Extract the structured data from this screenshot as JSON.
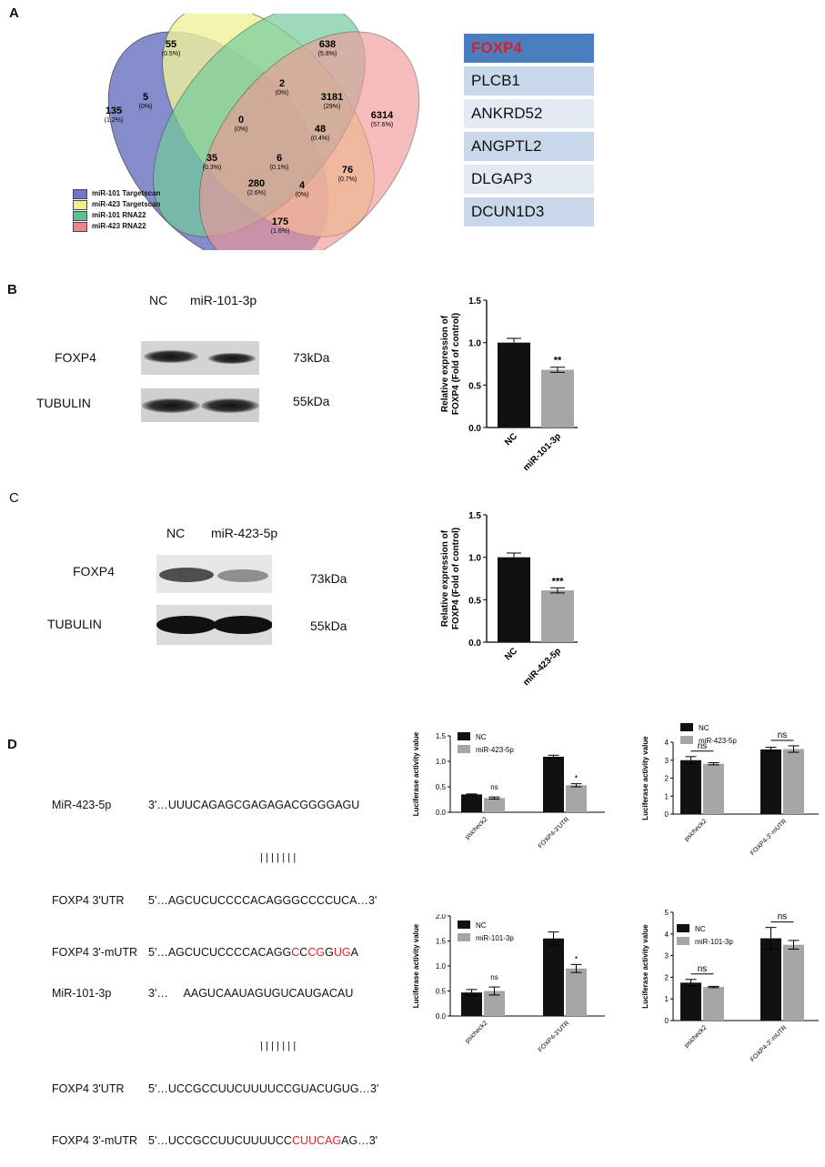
{
  "panels": {
    "A": "A",
    "B": "B",
    "C": "C",
    "D": "D"
  },
  "venn": {
    "regions": [
      {
        "count": "55",
        "pct": "(0.5%)"
      },
      {
        "count": "638",
        "pct": "(5.8%)"
      },
      {
        "count": "5",
        "pct": "(0%)"
      },
      {
        "count": "2",
        "pct": "(0%)"
      },
      {
        "count": "3181",
        "pct": "(29%)"
      },
      {
        "count": "135",
        "pct": "(1.2%)"
      },
      {
        "count": "0",
        "pct": "(0%)"
      },
      {
        "count": "48",
        "pct": "(0.4%)"
      },
      {
        "count": "6314",
        "pct": "(57.6%)"
      },
      {
        "count": "6",
        "pct": "(0.1%)"
      },
      {
        "count": "35",
        "pct": "(0.3%)"
      },
      {
        "count": "76",
        "pct": "(0.7%)"
      },
      {
        "count": "280",
        "pct": "(2.6%)"
      },
      {
        "count": "4",
        "pct": "(0%)"
      },
      {
        "count": "175",
        "pct": "(1.6%)"
      }
    ],
    "legend": [
      {
        "label": "miR-101 Targetscan",
        "color": "#6f78c4"
      },
      {
        "label": "miR-423 Targetscan",
        "color": "#eef08a"
      },
      {
        "label": "miR-101 RNA22",
        "color": "#5cc28a"
      },
      {
        "label": "miR-423 RNA22",
        "color": "#ee8585"
      }
    ]
  },
  "genes": [
    "FOXP4",
    "PLCB1",
    "ANKRD52",
    "ANGPTL2",
    "DLGAP3",
    "DCUN1D3"
  ],
  "blotB": {
    "lanes": [
      "NC",
      "miR-101-3p"
    ],
    "rows": [
      "FOXP4",
      "TUBULIN"
    ],
    "sizes": [
      "73kDa",
      "55kDa"
    ]
  },
  "blotC": {
    "lanes": [
      "NC",
      "miR-423-5p"
    ],
    "rows": [
      "FOXP4",
      "TUBULIN"
    ],
    "sizes": [
      "73kDa",
      "55kDa"
    ]
  },
  "seqD1": {
    "mir_name": "MiR-423-5p",
    "mir_seq": "3'…UUUCAGAGCGAGAGACGGGGAGU",
    "pairs": "|||||||",
    "utr_name": "FOXP4 3'UTR",
    "utr_seq": "5'…AGCUCUCCCCACAGGGCCCCUCA…3'",
    "mutr_name": "FOXP4 3'-mUTR",
    "mutr_pre": "5'…AGCUCUCCCCACAGG",
    "mutr_r1": "C",
    "mutr_m1": "CG",
    "mutr_r2": "C",
    "mutr_m2": "G",
    "mutr_r3": "U",
    "mutr_m3": "G",
    "mutr_post": "A"
  },
  "seqD2": {
    "mir_name": "MiR-101-3p",
    "mir_seq": "3'…     AAGUCAAUAGUGUCAUGACAU",
    "pairs": "|||||||",
    "utr_name": "FOXP4 3'UTR",
    "utr_seq": "5'…UCCGCCUUCUUUUCCGUACUGUG…3'",
    "mutr_name": "FOXP4 3'-mUTR",
    "mutr_pre": "5'…UCCGCCUUCUUUUCC",
    "mutr_r1": "CUUC",
    "mutr_m1": "A",
    "mutr_r2": "G",
    "mutr_post": "A",
    "mutr_end": "G…3'"
  },
  "chart_data": [
    {
      "type": "bar",
      "categories": [
        "NC",
        "miR-101-3p"
      ],
      "values": [
        1.0,
        0.68
      ],
      "errors": [
        0.05,
        0.03
      ],
      "colors": [
        "#111111",
        "#a6a6a6"
      ],
      "ylabel": "Relative expression of FOXP4 (Fold of control)",
      "ylim": [
        0,
        1.5
      ],
      "yticks": [
        "0.0",
        "0.5",
        "1.0",
        "1.5"
      ],
      "significance": [
        "",
        "**"
      ]
    },
    {
      "type": "bar",
      "categories": [
        "NC",
        "miR-423-5p"
      ],
      "values": [
        1.0,
        0.61
      ],
      "errors": [
        0.05,
        0.03
      ],
      "colors": [
        "#111111",
        "#a6a6a6"
      ],
      "ylabel": "Relative expression of FOXP4 (Fold of control)",
      "ylim": [
        0,
        1.5
      ],
      "yticks": [
        "0.0",
        "0.5",
        "1.0",
        "1.5"
      ],
      "significance": [
        "",
        "***"
      ]
    },
    {
      "type": "bar",
      "categories": [
        "psicheck2",
        "FOXP4-3'UTR"
      ],
      "series": [
        {
          "name": "NC",
          "values": [
            0.35,
            1.09
          ],
          "errors": [
            0.01,
            0.03
          ]
        },
        {
          "name": "miR-423-5p",
          "values": [
            0.28,
            0.53
          ],
          "errors": [
            0.02,
            0.03
          ]
        }
      ],
      "ylabel": "Luciferase activity value",
      "ylim": [
        0,
        1.5
      ],
      "yticks": [
        "0.0",
        "0.5",
        "1.0",
        "1.5"
      ],
      "significance": [
        "ns",
        "*"
      ]
    },
    {
      "type": "bar",
      "categories": [
        "psicheck2",
        "FOXP4-3'-mUTR"
      ],
      "series": [
        {
          "name": "NC",
          "values": [
            3.0,
            3.6
          ],
          "errors": [
            0.2,
            0.12
          ]
        },
        {
          "name": "miR-423-5p",
          "values": [
            2.8,
            3.62
          ],
          "errors": [
            0.06,
            0.18
          ]
        }
      ],
      "ylabel": "Luciferase activity value",
      "ylim": [
        0,
        4
      ],
      "yticks": [
        "0",
        "1",
        "2",
        "3",
        "4"
      ],
      "significance": [
        "ns",
        "ns"
      ]
    },
    {
      "type": "bar",
      "categories": [
        "psicheck2",
        "FOXP4-3'UTR"
      ],
      "series": [
        {
          "name": "NC",
          "values": [
            0.47,
            1.55
          ],
          "errors": [
            0.06,
            0.13
          ]
        },
        {
          "name": "miR-101-3p",
          "values": [
            0.5,
            0.95
          ],
          "errors": [
            0.08,
            0.08
          ]
        }
      ],
      "ylabel": "Luciferase activity value",
      "ylim": [
        0,
        2.0
      ],
      "yticks": [
        "0.0",
        "0.5",
        "1.0",
        "1.5",
        "2.0"
      ],
      "significance": [
        "ns",
        "*"
      ]
    },
    {
      "type": "bar",
      "categories": [
        "psicheck2",
        "FOXP4-3'-mUTR"
      ],
      "series": [
        {
          "name": "NC",
          "values": [
            1.75,
            3.8
          ],
          "errors": [
            0.15,
            0.5
          ]
        },
        {
          "name": "miR-101-3p",
          "values": [
            1.55,
            3.5
          ],
          "errors": [
            0.03,
            0.2
          ]
        }
      ],
      "ylabel": "Luciferase activity value",
      "ylim": [
        0,
        5
      ],
      "yticks": [
        "0",
        "1",
        "2",
        "3",
        "4",
        "5"
      ],
      "significance": [
        "ns",
        "ns"
      ]
    }
  ]
}
